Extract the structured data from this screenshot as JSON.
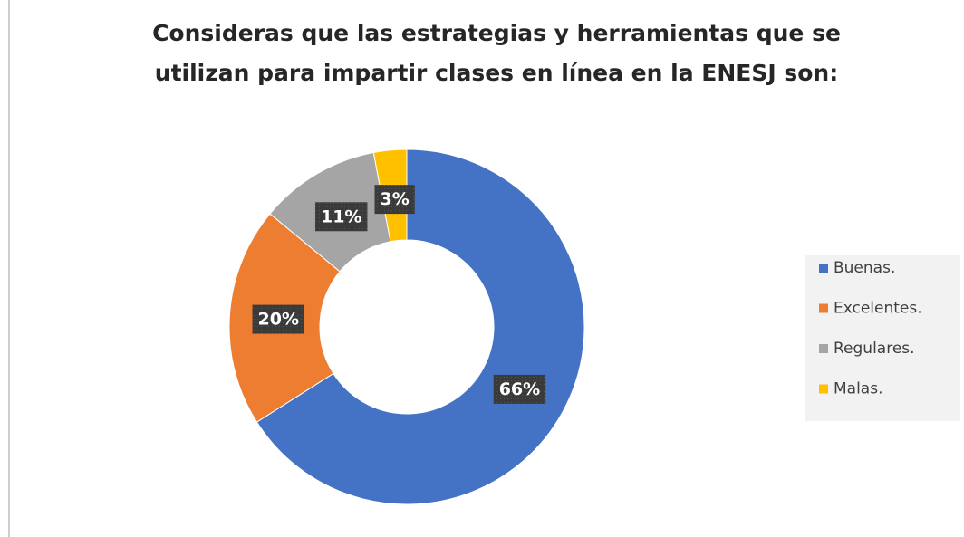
{
  "chart_data": {
    "type": "donut",
    "title": [
      "Consideras que las estrategias y herramientas que se",
      "utilizan para impartir clases en línea en la ENESJ son:"
    ],
    "categories": [
      "Buenas.",
      "Excelentes.",
      "Regulares.",
      "Malas."
    ],
    "values": [
      66,
      20,
      11,
      3
    ],
    "value_labels": [
      "66%",
      "20%",
      "11%",
      "3%"
    ],
    "colors": [
      "#4472c4",
      "#ed7d31",
      "#a5a5a5",
      "#ffc000"
    ],
    "legend": "right"
  }
}
